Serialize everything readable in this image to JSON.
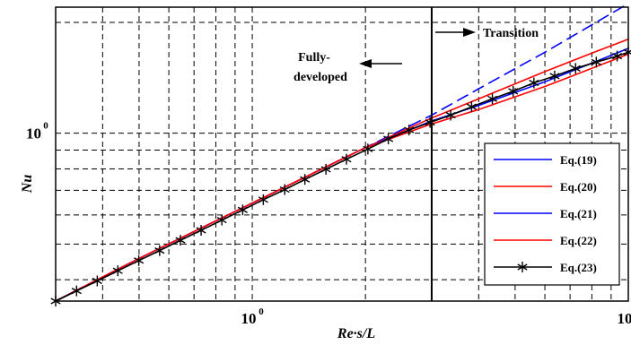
{
  "chart_data": {
    "type": "line",
    "scale": {
      "x": "log",
      "y": "log"
    },
    "xlim": [
      0.3,
      10
    ],
    "ylim": [
      0.35,
      2.2
    ],
    "xlabel": "Re·s/L",
    "ylabel": "Nu",
    "grid": true,
    "x_ticks": [
      {
        "value": 1,
        "base": "10",
        "exponent": "0"
      },
      {
        "value": 10,
        "base": "10",
        "exponent": ""
      }
    ],
    "y_ticks": [
      {
        "value": 1,
        "base": "10",
        "exponent": "0"
      }
    ],
    "annotations": {
      "transition": "Transition",
      "fully_developed_line1": "Fully-",
      "fully_developed_line2": "developed",
      "transition_x": 3.0
    },
    "legend": {
      "position": "bottom-right"
    },
    "series": [
      {
        "name": "Eq.(19)",
        "color": "#0000ff",
        "dash": "dashed",
        "x": [
          0.3,
          0.5,
          1,
          2,
          3,
          4,
          6,
          8,
          10
        ],
        "y": [
          0.35,
          0.457,
          0.646,
          0.914,
          1.12,
          1.32,
          1.66,
          1.97,
          2.25
        ]
      },
      {
        "name": "Eq.(20)",
        "color": "#ff0000",
        "dash": "solid",
        "x": [
          0.3,
          0.5,
          1,
          2,
          3,
          4,
          6,
          8,
          10
        ],
        "y": [
          0.35,
          0.457,
          0.646,
          0.914,
          1.1,
          1.24,
          1.47,
          1.65,
          1.8
        ]
      },
      {
        "name": "Eq.(21)",
        "color": "#0000ff",
        "dash": "solid",
        "x": [
          0.3,
          0.5,
          1,
          2,
          3,
          4,
          6,
          8,
          10
        ],
        "y": [
          0.35,
          0.457,
          0.646,
          0.914,
          1.08,
          1.19,
          1.38,
          1.55,
          1.7
        ]
      },
      {
        "name": "Eq.(22)",
        "color": "#ff0000",
        "dash": "solid",
        "x": [
          0.3,
          0.5,
          1,
          2,
          3,
          4,
          6,
          8,
          10
        ],
        "y": [
          0.35,
          0.457,
          0.646,
          0.914,
          1.06,
          1.16,
          1.34,
          1.5,
          1.64
        ]
      },
      {
        "name": "Eq.(23)",
        "color": "#000000",
        "dash": "solid",
        "marker": "asterisk",
        "x": [
          0.3,
          0.341,
          0.387,
          0.439,
          0.499,
          0.567,
          0.644,
          0.731,
          0.83,
          0.943,
          1.07,
          1.22,
          1.38,
          1.57,
          1.78,
          2.03,
          2.3,
          2.61,
          2.97,
          3.37,
          3.83,
          4.35,
          4.94,
          5.61,
          6.37,
          7.24,
          8.22,
          9.34,
          10
        ],
        "y": [
          0.35,
          0.373,
          0.397,
          0.423,
          0.451,
          0.48,
          0.512,
          0.545,
          0.581,
          0.619,
          0.66,
          0.703,
          0.749,
          0.798,
          0.85,
          0.906,
          0.965,
          1.02,
          1.07,
          1.12,
          1.18,
          1.24,
          1.3,
          1.37,
          1.43,
          1.5,
          1.56,
          1.62,
          1.66
        ]
      }
    ]
  }
}
